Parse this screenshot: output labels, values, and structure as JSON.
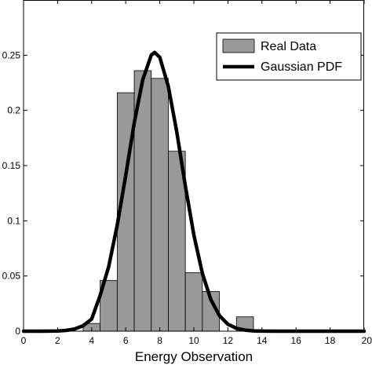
{
  "chart_data": {
    "type": "bar",
    "xlabel": "Energy Observation",
    "ylabel": "",
    "xlim": [
      0,
      20
    ],
    "ylim": [
      0,
      0.3
    ],
    "xticks": [
      "0",
      "2",
      "4",
      "6",
      "8",
      "10",
      "12",
      "14",
      "16",
      "18",
      "20"
    ],
    "yticks": [
      "0",
      "0.05",
      "0.1",
      "0.15",
      "0.2",
      "0.25"
    ],
    "grid": false,
    "legend_position": "top-right",
    "series": [
      {
        "name": "Real Data",
        "type": "bar",
        "color": "#999999",
        "bins": [
          {
            "x0": 3.5,
            "x1": 4.5,
            "value": 0.007
          },
          {
            "x0": 4.5,
            "x1": 5.5,
            "value": 0.046
          },
          {
            "x0": 5.5,
            "x1": 6.5,
            "value": 0.216
          },
          {
            "x0": 6.5,
            "x1": 7.5,
            "value": 0.236
          },
          {
            "x0": 7.5,
            "x1": 8.5,
            "value": 0.229
          },
          {
            "x0": 8.5,
            "x1": 9.5,
            "value": 0.163
          },
          {
            "x0": 9.5,
            "x1": 10.5,
            "value": 0.053
          },
          {
            "x0": 10.5,
            "x1": 11.5,
            "value": 0.036
          },
          {
            "x0": 12.5,
            "x1": 13.5,
            "value": 0.013
          }
        ]
      },
      {
        "name": "Gaussian PDF",
        "type": "line",
        "color": "#000000",
        "mean": 7.7,
        "std": 1.58,
        "x": [
          0,
          1,
          2,
          2.5,
          3,
          3.5,
          4,
          4.5,
          5,
          5.5,
          6,
          6.5,
          7,
          7.5,
          7.7,
          8,
          8.5,
          9,
          9.5,
          10,
          10.5,
          11,
          11.5,
          12,
          12.5,
          13,
          13.5,
          14,
          15,
          16,
          17,
          18,
          19,
          20
        ],
        "y": [
          0.0,
          0.0,
          0.0002,
          0.0007,
          0.002,
          0.005,
          0.011,
          0.0325,
          0.0585,
          0.096,
          0.141,
          0.1887,
          0.2278,
          0.2501,
          0.2525,
          0.2481,
          0.2218,
          0.1803,
          0.1317,
          0.0872,
          0.0524,
          0.0286,
          0.0142,
          0.0063,
          0.0026,
          0.001,
          0.0003,
          0.0001,
          0.0,
          0.0,
          0.0,
          0.0,
          0.0,
          0.0
        ]
      }
    ]
  }
}
